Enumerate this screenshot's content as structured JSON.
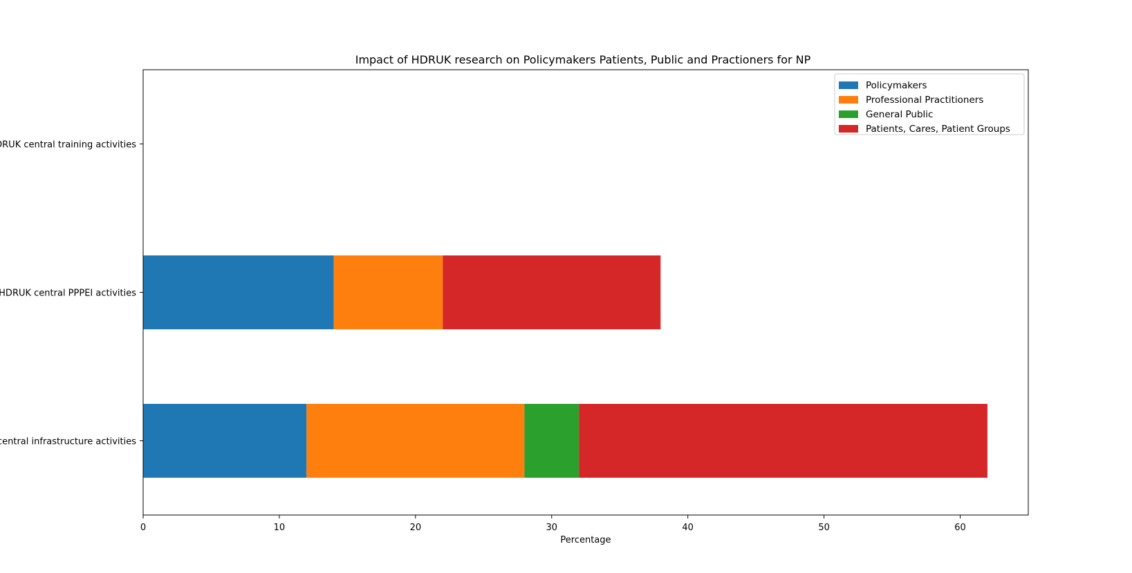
{
  "chart_data": {
    "type": "bar",
    "orientation": "horizontal",
    "stacked": true,
    "title": "Impact of HDRUK research on Policymakers Patients, Public and Practioners for NP",
    "xlabel": "Percentage",
    "ylabel": "",
    "xlim": [
      0,
      65
    ],
    "xticks": [
      0,
      10,
      20,
      30,
      40,
      50,
      60
    ],
    "grid": false,
    "legend_position": "top-right",
    "categories": [
      "HDRUK central infrastructure activities",
      "HDRUK central PPPEI activities",
      "HDRUK central training activities"
    ],
    "series": [
      {
        "name": "Policymakers",
        "color": "#1f77b4",
        "values": [
          12,
          14,
          0
        ]
      },
      {
        "name": "Professional Practitioners",
        "color": "#ff7f0e",
        "values": [
          16,
          8,
          0
        ]
      },
      {
        "name": "General Public",
        "color": "#2ca02c",
        "values": [
          4,
          0,
          0
        ]
      },
      {
        "name": "Patients, Cares, Patient Groups",
        "color": "#d62728",
        "values": [
          30,
          16,
          0
        ]
      }
    ]
  }
}
